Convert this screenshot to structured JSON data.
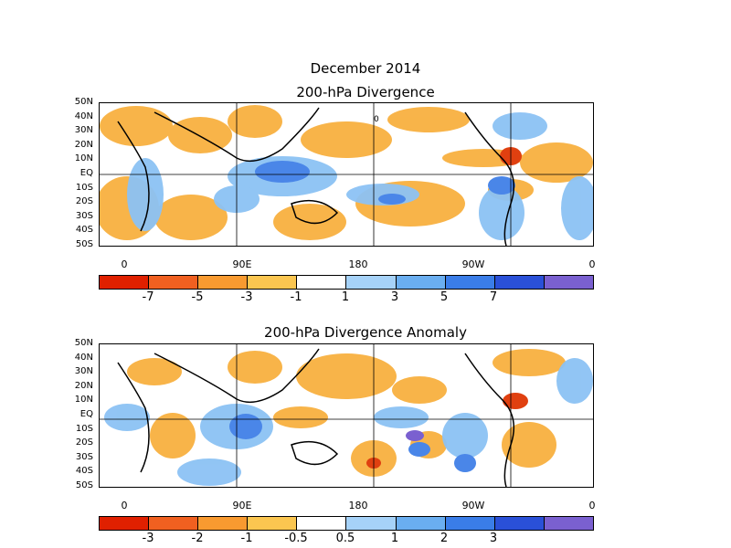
{
  "header": {
    "title": "December 2014",
    "panel1_title": "200-hPa Divergence",
    "panel2_title": "200-hPa Divergence Anomaly"
  },
  "lat_labels": [
    "50N",
    "40N",
    "30N",
    "20N",
    "10N",
    "EQ",
    "10S",
    "20S",
    "30S",
    "40S",
    "50S"
  ],
  "lon_labels": [
    "0",
    "90E",
    "180",
    "90W",
    "0"
  ],
  "colorbar1": {
    "colors": [
      "#e02000",
      "#f06020",
      "#f89a30",
      "#fbc650",
      "#ffffff",
      "#a6d2f8",
      "#6aaef0",
      "#3a7de8",
      "#2a50d8",
      "#7a60d0"
    ],
    "labels": [
      "-7",
      "-5",
      "-3",
      "-1",
      "1",
      "3",
      "5",
      "7"
    ]
  },
  "colorbar2": {
    "colors": [
      "#e02000",
      "#f06020",
      "#f89a30",
      "#fbc650",
      "#ffffff",
      "#a6d2f8",
      "#6aaef0",
      "#3a7de8",
      "#2a50d8",
      "#7a60d0"
    ],
    "labels": [
      "-3",
      "-2",
      "-1",
      "-0.5",
      "0.5",
      "1",
      "2",
      "3"
    ]
  },
  "contour_label": "0"
}
